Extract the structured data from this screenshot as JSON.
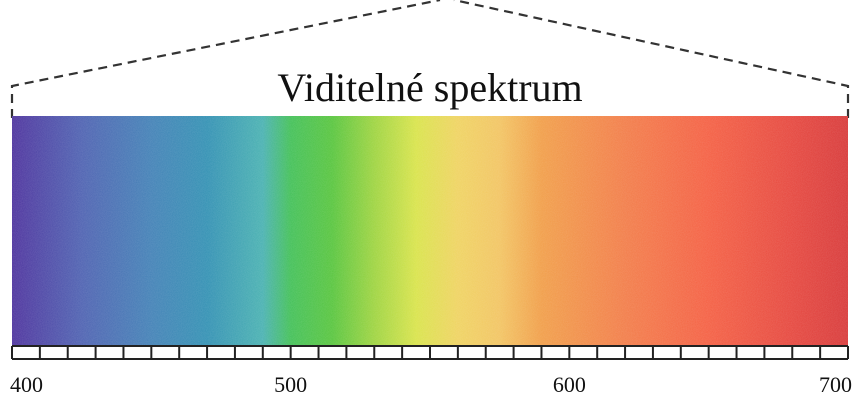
{
  "title": "Viditelné spektrum",
  "scale": {
    "min_nm": 400,
    "max_nm": 700,
    "minor_step_nm": 10,
    "labels": [
      {
        "value": 400,
        "text": "400"
      },
      {
        "value": 500,
        "text": "500"
      },
      {
        "value": 600,
        "text": "600"
      },
      {
        "value": 700,
        "text": "700"
      }
    ]
  },
  "spectrum_colors": [
    {
      "nm": 400,
      "color": "#4a2f9c"
    },
    {
      "nm": 425,
      "color": "#4b5fb0"
    },
    {
      "nm": 450,
      "color": "#3f7fb5"
    },
    {
      "nm": 470,
      "color": "#2f8fb2"
    },
    {
      "nm": 490,
      "color": "#46b0b0"
    },
    {
      "nm": 500,
      "color": "#3fbf55"
    },
    {
      "nm": 515,
      "color": "#55c43a"
    },
    {
      "nm": 530,
      "color": "#9cd33c"
    },
    {
      "nm": 545,
      "color": "#d8e347"
    },
    {
      "nm": 560,
      "color": "#efd25e"
    },
    {
      "nm": 575,
      "color": "#f2c35f"
    },
    {
      "nm": 590,
      "color": "#f19c45"
    },
    {
      "nm": 620,
      "color": "#f27a45"
    },
    {
      "nm": 650,
      "color": "#f45c3f"
    },
    {
      "nm": 680,
      "color": "#e5433a"
    },
    {
      "nm": 700,
      "color": "#d73535"
    }
  ]
}
